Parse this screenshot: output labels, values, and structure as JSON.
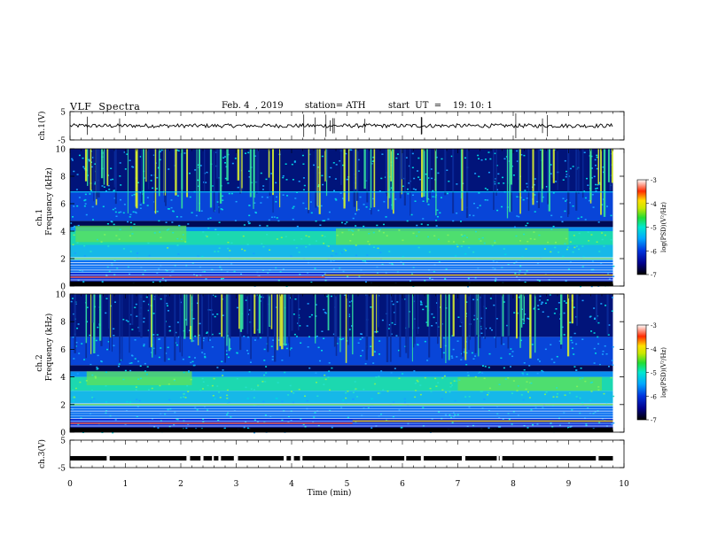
{
  "header": {
    "title": "VLF  Spectra",
    "date": "Feb. 4  , 2019",
    "station": "station= ATH",
    "start_ut": "start  UT  =    19: 10: 1"
  },
  "chart_data": [
    {
      "type": "line",
      "panel": "ch1-voltage",
      "ylabel": "ch.1(V)",
      "yticks": [
        "5",
        "-5"
      ],
      "ylim": [
        -5,
        5
      ],
      "series": [
        {
          "x": [
            0,
            9.8
          ],
          "values": [
            0,
            0
          ]
        }
      ]
    },
    {
      "type": "heatmap",
      "panel": "ch1-spectrogram",
      "ylabel_lines": [
        "ch.1",
        "Frequency  (kHz)"
      ],
      "yticks": [
        "0",
        "2",
        "4",
        "6",
        "8",
        "10"
      ],
      "ylim": [
        0,
        10
      ],
      "xlim": [
        0,
        10
      ],
      "data_extent_min": 9.8,
      "colorbar": {
        "label": "log(PSD)(V²/Hz)",
        "ticks": [
          "-3",
          "-4",
          "-5",
          "-6",
          "-7"
        ]
      }
    },
    {
      "type": "heatmap",
      "panel": "ch2-spectrogram",
      "ylabel_lines": [
        "ch.2",
        "Frequency  (kHz)"
      ],
      "yticks": [
        "0",
        "2",
        "4",
        "6",
        "8",
        "10"
      ],
      "ylim": [
        0,
        10
      ],
      "xlim": [
        0,
        10
      ],
      "data_extent_min": 9.8,
      "colorbar": {
        "label": "log(PSD)(V²/Hz)",
        "ticks": [
          "-3",
          "-4",
          "-5",
          "-6",
          "-7"
        ]
      }
    },
    {
      "type": "line",
      "panel": "ch3-voltage",
      "ylabel": "ch.3(V)",
      "yticks": [
        "5",
        "-5"
      ],
      "ylim": [
        -5,
        5
      ],
      "series": [
        {
          "x": [
            0,
            9.8
          ],
          "values": [
            -1.6,
            -1.6
          ]
        }
      ]
    }
  ],
  "xaxis": {
    "label": "Time  (min)",
    "ticks": [
      "0",
      "1",
      "2",
      "3",
      "4",
      "5",
      "6",
      "7",
      "8",
      "9",
      "10"
    ],
    "xlim": [
      0,
      10
    ]
  },
  "colors": {
    "background": "#ffffff",
    "trace": "#000000",
    "colormap": [
      "#000000",
      "#00008b",
      "#0033dd",
      "#00a8ff",
      "#00e8d0",
      "#22dd33",
      "#c8e800",
      "#ffe000",
      "#ff2a00",
      "#ffffff"
    ]
  }
}
